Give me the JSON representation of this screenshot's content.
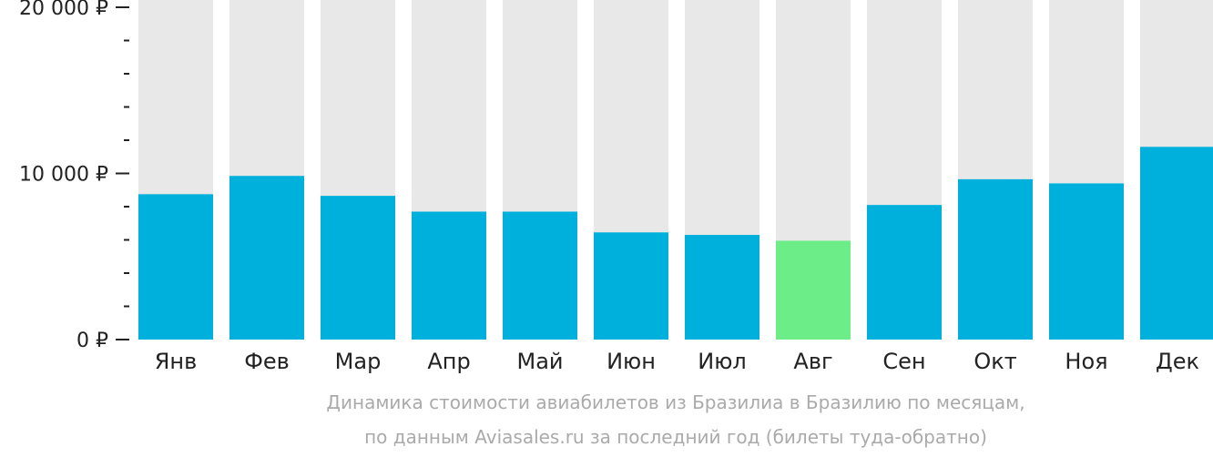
{
  "chart_data": {
    "type": "bar",
    "categories": [
      "Янв",
      "Фев",
      "Мар",
      "Апр",
      "Май",
      "Июн",
      "Июл",
      "Авг",
      "Сен",
      "Окт",
      "Ноя",
      "Дек"
    ],
    "values": [
      8750,
      9850,
      8650,
      7700,
      7700,
      6450,
      6300,
      5950,
      8100,
      9650,
      9400,
      11600
    ],
    "highlight_index": 7,
    "ylim": [
      0,
      20000
    ],
    "y_ticks": [
      {
        "value": 0,
        "label": "0 ₽"
      },
      {
        "value": 10000,
        "label": "10 000 ₽"
      },
      {
        "value": 20000,
        "label": "20 000 ₽"
      }
    ],
    "minor_tick_step": 2000,
    "colors": {
      "bar": "#00b0dc",
      "highlight": "#6ded87",
      "background_bar": "#e8e8e8",
      "axis": "#222222"
    }
  },
  "caption": {
    "line1": "Динамика стоимости авиабилетов из Бразилиа в Бразилию по месяцам,",
    "line2": "по данным Aviasales.ru за последний год (билеты туда-обратно)"
  }
}
